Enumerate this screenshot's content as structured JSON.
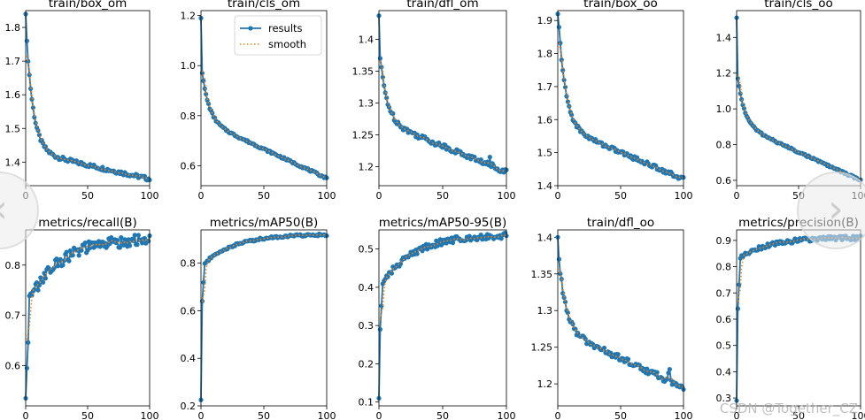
{
  "colors": {
    "results": "#1f77b4",
    "smooth": "#ff7f0e"
  },
  "legend": {
    "results_label": "results",
    "smooth_label": "smooth"
  },
  "watermark": "CSDN @Together_CZ",
  "navigation": {
    "prev_icon": "chevron-left-icon",
    "next_icon": "chevron-right-icon"
  },
  "chart_data": [
    {
      "type": "line",
      "title": "train/box_om",
      "xlim": [
        0,
        100
      ],
      "ylim": [
        1.33,
        1.85
      ],
      "xticks": [
        0,
        50,
        100
      ],
      "yticks": [
        1.4,
        1.5,
        1.6,
        1.7,
        1.8
      ],
      "series": [
        {
          "name": "results",
          "start": 1.84,
          "second": 1.76,
          "end": 1.35,
          "shape": 0.8,
          "noise": 0.006
        }
      ]
    },
    {
      "type": "line",
      "title": "train/cls_om",
      "xlim": [
        0,
        100
      ],
      "ylim": [
        0.52,
        1.22
      ],
      "xticks": [
        0,
        50,
        100
      ],
      "yticks": [
        0.6,
        0.8,
        1.0,
        1.2
      ],
      "legend": "top-right",
      "series": [
        {
          "name": "results",
          "start": 1.19,
          "second": 0.97,
          "end": 0.55,
          "shape": 0.45,
          "noise": 0.004
        }
      ]
    },
    {
      "type": "line",
      "title": "train/dfl_om",
      "xlim": [
        0,
        100
      ],
      "ylim": [
        1.17,
        1.445
      ],
      "xticks": [
        0,
        50,
        100
      ],
      "yticks": [
        1.2,
        1.25,
        1.3,
        1.35,
        1.4
      ],
      "series": [
        {
          "name": "results",
          "start": 1.437,
          "second": 1.37,
          "end": 1.192,
          "shape": 0.55,
          "noise": 0.004,
          "spikes": [
            [
              87,
              1.215
            ],
            [
              88,
              1.2
            ],
            [
              89,
              1.205
            ]
          ]
        }
      ]
    },
    {
      "type": "line",
      "title": "train/box_oo",
      "xlim": [
        0,
        100
      ],
      "ylim": [
        1.4,
        1.93
      ],
      "xticks": [
        0,
        50,
        100
      ],
      "yticks": [
        1.4,
        1.5,
        1.6,
        1.7,
        1.8,
        1.9
      ],
      "series": [
        {
          "name": "results",
          "start": 1.92,
          "second": 1.88,
          "end": 1.42,
          "shape": 0.65,
          "noise": 0.006
        }
      ]
    },
    {
      "type": "line",
      "title": "train/cls_oo",
      "xlim": [
        0,
        100
      ],
      "ylim": [
        0.57,
        1.55
      ],
      "xticks": [
        0,
        50,
        100
      ],
      "yticks": [
        0.6,
        0.8,
        1.0,
        1.2,
        1.4
      ],
      "series": [
        {
          "name": "results",
          "start": 1.51,
          "second": 1.17,
          "end": 0.6,
          "shape": 0.45,
          "noise": 0.005
        }
      ]
    },
    {
      "type": "line",
      "title": "metrics/recall(B)",
      "xlim": [
        0,
        100
      ],
      "ylim": [
        0.52,
        0.87
      ],
      "xticks": [
        0,
        50,
        100
      ],
      "yticks": [
        0.6,
        0.7,
        0.8
      ],
      "series": [
        {
          "name": "results",
          "start": 0.535,
          "second": 0.595,
          "end": 0.85,
          "shape": 0.5,
          "noise": 0.012,
          "early": 0.72
        }
      ]
    },
    {
      "type": "line",
      "title": "metrics/mAP50(B)",
      "xlim": [
        0,
        100
      ],
      "ylim": [
        0.2,
        0.94
      ],
      "xticks": [
        0,
        50,
        100
      ],
      "yticks": [
        0.2,
        0.4,
        0.6,
        0.8
      ],
      "series": [
        {
          "name": "results",
          "start": 0.225,
          "second": 0.64,
          "end": 0.92,
          "shape": 0.35,
          "noise": 0.005,
          "early": 0.79
        }
      ]
    },
    {
      "type": "line",
      "title": "metrics/mAP50-95(B)",
      "xlim": [
        0,
        100
      ],
      "ylim": [
        0.09,
        0.55
      ],
      "xticks": [
        0,
        50,
        100
      ],
      "yticks": [
        0.1,
        0.2,
        0.3,
        0.4,
        0.5
      ],
      "series": [
        {
          "name": "results",
          "start": 0.11,
          "second": 0.29,
          "end": 0.535,
          "shape": 0.4,
          "noise": 0.008,
          "early": 0.4
        }
      ]
    },
    {
      "type": "line",
      "title": "train/dfl_oo",
      "xlim": [
        0,
        100
      ],
      "ylim": [
        1.17,
        1.41
      ],
      "xticks": [
        0,
        50,
        100
      ],
      "yticks": [
        1.2,
        1.25,
        1.3,
        1.35,
        1.4
      ],
      "series": [
        {
          "name": "results",
          "start": 1.4,
          "second": 1.37,
          "end": 1.195,
          "shape": 0.55,
          "noise": 0.004,
          "spikes": [
            [
              88,
              1.215
            ],
            [
              89,
              1.22
            ],
            [
              90,
              1.205
            ]
          ]
        }
      ]
    },
    {
      "type": "line",
      "title": "metrics/precision(B)",
      "xlim": [
        0,
        100
      ],
      "ylim": [
        0.27,
        0.94
      ],
      "xticks": [
        0,
        50,
        100
      ],
      "yticks": [
        0.3,
        0.4,
        0.5,
        0.6,
        0.7,
        0.8,
        0.9
      ],
      "series": [
        {
          "name": "results",
          "start": 0.29,
          "second": 0.64,
          "end": 0.91,
          "shape": 0.4,
          "noise": 0.008,
          "early": 0.83
        }
      ]
    }
  ]
}
